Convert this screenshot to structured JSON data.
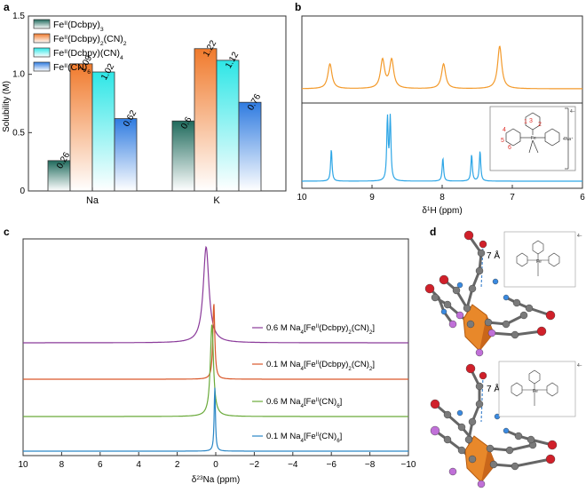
{
  "panels": {
    "a": {
      "label": "a"
    },
    "b": {
      "label": "b"
    },
    "c": {
      "label": "c"
    },
    "d": {
      "label": "d"
    }
  },
  "chart_data": [
    {
      "type": "bar",
      "panel": "a",
      "ylabel": "Solubility (M)",
      "xlabel": "",
      "ylim": [
        0,
        1.5
      ],
      "yticks": [
        "0",
        "0.5",
        "1.0",
        "1.5"
      ],
      "categories": [
        "Na",
        "K"
      ],
      "legend": [
        {
          "base": "Fe",
          "sup": "II",
          "rest": "(Dcbpy)",
          "sub": "3",
          "tail": "",
          "color": "#1f6a5c"
        },
        {
          "base": "Fe",
          "sup": "II",
          "rest": "(Dcbpy)",
          "sub": "2",
          "tail": "(CN)",
          "sub2": "2",
          "color": "#f07a2c"
        },
        {
          "base": "Fe",
          "sup": "II",
          "rest": "(Dcbpy)(CN)",
          "sub": "4",
          "tail": "",
          "color": "#2ee6e6"
        },
        {
          "base": "Fe",
          "sup": "II",
          "rest": "(CN)",
          "sub": "6",
          "tail": "",
          "color": "#2f7be0"
        }
      ],
      "legend_placement": "top-left",
      "series": [
        {
          "values": [
            0.26,
            0.6
          ],
          "labels": [
            "0.26",
            "0.6"
          ]
        },
        {
          "values": [
            1.09,
            1.22
          ],
          "labels": [
            "1.09",
            "1.22"
          ]
        },
        {
          "values": [
            1.02,
            1.12
          ],
          "labels": [
            "1.02",
            "1.12"
          ]
        },
        {
          "values": [
            0.62,
            0.76
          ],
          "labels": [
            "0.62",
            "0.76"
          ]
        }
      ]
    },
    {
      "type": "line",
      "panel": "b",
      "xlabel_sup": "1",
      "xlabel_main": "H (ppm)",
      "xlabel_prefix": "δ",
      "xlim": [
        10,
        6
      ],
      "xticks": [
        "10",
        "9",
        "8",
        "7",
        "6"
      ],
      "series": [
        {
          "color": "#f39a2b",
          "peaks": [
            9.6,
            8.85,
            8.72,
            7.98,
            7.18
          ]
        },
        {
          "color": "#2ea6e6",
          "peaks": [
            9.58,
            8.78,
            8.74,
            7.99,
            7.58,
            7.46
          ]
        }
      ]
    },
    {
      "type": "line",
      "panel": "c",
      "xlabel_sup": "23",
      "xlabel_main": "Na (ppm)",
      "xlabel_prefix": "δ",
      "xlim": [
        10,
        -10
      ],
      "xticks": [
        "10",
        "8",
        "6",
        "4",
        "2",
        "0",
        "−2",
        "−4",
        "−6",
        "−8",
        "−10"
      ],
      "series": [
        {
          "color": "#8a3a9a",
          "peak": 0.5,
          "label_pre": "0.6 M Na",
          "sub": "4",
          "label_mid": "[Fe",
          "sup": "II",
          "label_tail": "(Dcbpy)",
          "sub2": "2",
          "label_end": "(CN)",
          "sub3": "2",
          "label_close": "]"
        },
        {
          "color": "#d9582a",
          "peak": 0.1,
          "label_pre": "0.1 M Na",
          "sub": "4",
          "label_mid": "[Fe",
          "sup": "II",
          "label_tail": "(Dcbpy)",
          "sub2": "2",
          "label_end": "(CN)",
          "sub3": "2",
          "label_close": "]"
        },
        {
          "color": "#6aaa3a",
          "peak": 0.2,
          "label_pre": "0.6 M Na",
          "sub": "4",
          "label_mid": "[Fe",
          "sup": "II",
          "label_tail": "(CN)",
          "sub2": "6",
          "label_end": "]",
          "sub3": "",
          "label_close": ""
        },
        {
          "color": "#2a86c6",
          "peak": 0.05,
          "label_pre": "0.1 M Na",
          "sub": "4",
          "label_mid": "[Fe",
          "sup": "II",
          "label_tail": "(CN)",
          "sub2": "6",
          "label_end": "]",
          "sub3": "",
          "label_close": ""
        }
      ]
    }
  ],
  "panel_b_structure": {
    "numbers": [
      "1",
      "2",
      "3",
      "4",
      "5",
      "6"
    ],
    "charge": "4−",
    "counter": "4Na⁺",
    "metal": "Fe"
  },
  "panel_d": {
    "distance_top": "7 Å",
    "distance_bottom": "7 Å",
    "charge_top": "4−",
    "charge_bottom": "4−",
    "metal": "Fe"
  }
}
